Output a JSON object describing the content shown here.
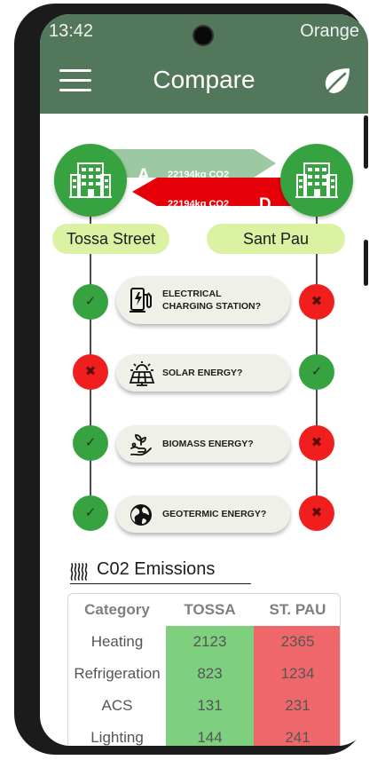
{
  "status_bar": {
    "time": "13:42",
    "carrier": "Orange"
  },
  "header": {
    "title": "Compare",
    "menu_icon": "hamburger-menu-icon",
    "leaf_icon": "leaf-icon"
  },
  "comparison": {
    "left": {
      "name": "Tossa Street",
      "grade": "A",
      "co2": "22194kg CO2",
      "grade_color": "#9cc9a2"
    },
    "right": {
      "name": "Sant Pau",
      "grade": "D",
      "co2": "22194kg CO2",
      "grade_color": "#e5000a"
    }
  },
  "features": [
    {
      "label": "ELECTRICAL\nCHARGING STATION?",
      "icon": "ev-charger-icon",
      "left": "yes",
      "right": "no"
    },
    {
      "label": "SOLAR ENERGY?",
      "icon": "solar-panel-icon",
      "left": "no",
      "right": "yes"
    },
    {
      "label": "BIOMASS ENERGY?",
      "icon": "biomass-icon",
      "left": "yes",
      "right": "no"
    },
    {
      "label": "GEOTERMIC ENERGY?",
      "icon": "globe-icon",
      "left": "yes",
      "right": "no"
    }
  ],
  "status_symbols": {
    "yes": "✓",
    "no": "✖"
  },
  "emissions": {
    "title": "C02 Emissions",
    "icon": "heat-waves-icon",
    "headers": [
      "Category",
      "TOSSA",
      "ST. PAU"
    ],
    "rows": [
      [
        "Heating",
        "2123",
        "2365"
      ],
      [
        "Refrigeration",
        "823",
        "1234"
      ],
      [
        "ACS",
        "131",
        "231"
      ],
      [
        "Lighting",
        "144",
        "241"
      ]
    ]
  },
  "colors": {
    "appbar": "#52775b",
    "status_yes": "#36a340",
    "status_no": "#f11e1e",
    "pill": "#dcf2a3",
    "table_good": "#7ecf7e",
    "table_bad": "#f0676b"
  }
}
